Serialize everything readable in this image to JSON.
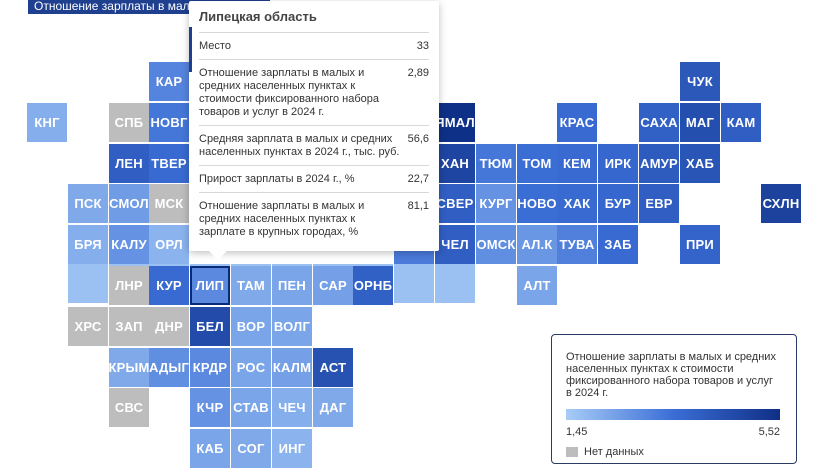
{
  "header": {
    "title": "Отношение зарплаты в малых и средних..."
  },
  "colors": {
    "low": "#a8ccf6",
    "mid": "#3b6ed6",
    "high": "#0f2f86",
    "na": "#bdbdbd"
  },
  "regions": [
    {
      "code": "КАР",
      "col": 4,
      "row": 1,
      "value": 3.0
    },
    {
      "code": "ЧУК",
      "col": 17,
      "row": 1,
      "value": 4.2
    },
    {
      "code": "КНГ",
      "col": 1,
      "row": 2,
      "value": 2.1
    },
    {
      "code": "СПБ",
      "col": 3,
      "row": 2,
      "value": null
    },
    {
      "code": "НОВГ",
      "col": 4,
      "row": 2,
      "value": 3.3
    },
    {
      "code": "ЯМАЛ",
      "col": 11,
      "row": 2,
      "value": 5.5
    },
    {
      "code": "КРАС",
      "col": 14,
      "row": 2,
      "value": 3.6
    },
    {
      "code": "САХА",
      "col": 16,
      "row": 2,
      "value": 3.9
    },
    {
      "code": "МАГ",
      "col": 17,
      "row": 2,
      "value": 4.5
    },
    {
      "code": "КАМ",
      "col": 18,
      "row": 2,
      "value": 4.0
    },
    {
      "code": "ЛЕН",
      "col": 3,
      "row": 3,
      "value": 4.0
    },
    {
      "code": "ТВЕР",
      "col": 4,
      "row": 3,
      "value": 3.6
    },
    {
      "code": "ХАН",
      "col": 11,
      "row": 3,
      "value": 4.8
    },
    {
      "code": "ТЮМ",
      "col": 12,
      "row": 3,
      "value": 3.3
    },
    {
      "code": "ТОМ",
      "col": 13,
      "row": 3,
      "value": 3.5
    },
    {
      "code": "КЕМ",
      "col": 14,
      "row": 3,
      "value": 3.6
    },
    {
      "code": "ИРК",
      "col": 15,
      "row": 3,
      "value": 3.7
    },
    {
      "code": "АМУР",
      "col": 16,
      "row": 3,
      "value": 4.1
    },
    {
      "code": "ХАБ",
      "col": 17,
      "row": 3,
      "value": 4.3
    },
    {
      "code": "ПСК",
      "col": 2,
      "row": 4,
      "value": 2.2
    },
    {
      "code": "СМОЛ",
      "col": 3,
      "row": 4,
      "value": 2.5
    },
    {
      "code": "МСК",
      "col": 4,
      "row": 4,
      "value": null
    },
    {
      "code": "СВЕР",
      "col": 11,
      "row": 4,
      "value": 4.0
    },
    {
      "code": "КУРГ",
      "col": 12,
      "row": 4,
      "value": 2.7
    },
    {
      "code": "НОВО",
      "col": 13,
      "row": 4,
      "value": 3.5
    },
    {
      "code": "ХАК",
      "col": 14,
      "row": 4,
      "value": 3.6
    },
    {
      "code": "БУР",
      "col": 15,
      "row": 4,
      "value": 3.7
    },
    {
      "code": "ЕВР",
      "col": 16,
      "row": 4,
      "value": 4.0
    },
    {
      "code": "СХЛН",
      "col": 19,
      "row": 4,
      "value": 4.9
    },
    {
      "code": "БРЯ",
      "col": 2,
      "row": 5,
      "value": 2.1
    },
    {
      "code": "КАЛУ",
      "col": 3,
      "row": 5,
      "value": 2.7
    },
    {
      "code": "ОРЛ",
      "col": 4,
      "row": 5,
      "value": 2.0
    },
    {
      "code": "",
      "col": 10,
      "row": 5,
      "value": 3.2
    },
    {
      "code": "ЧЕЛ",
      "col": 11,
      "row": 5,
      "value": 4.0
    },
    {
      "code": "ОМСК",
      "col": 12,
      "row": 5,
      "value": 2.8
    },
    {
      "code": "АЛ.К",
      "col": 13,
      "row": 5,
      "value": 2.6
    },
    {
      "code": "ТУВА",
      "col": 14,
      "row": 5,
      "value": 3.1
    },
    {
      "code": "ЗАБ",
      "col": 15,
      "row": 5,
      "value": 3.6
    },
    {
      "code": "ПРИ",
      "col": 17,
      "row": 5,
      "value": 3.8
    },
    {
      "code": "",
      "col": 2,
      "row": 5.95,
      "value": 1.7
    },
    {
      "code": "",
      "col": 3,
      "row": 5.95,
      "value": 1.7
    },
    {
      "code": "",
      "col": 4,
      "row": 5.95,
      "value": 1.7
    },
    {
      "code": "",
      "col": 5,
      "row": 5.95,
      "value": 1.7
    },
    {
      "code": "",
      "col": 6,
      "row": 5.95,
      "value": 1.7
    },
    {
      "code": "",
      "col": 7,
      "row": 5.95,
      "value": 1.7
    },
    {
      "code": "",
      "col": 8,
      "row": 5.95,
      "value": 1.7
    },
    {
      "code": "",
      "col": 9,
      "row": 5.95,
      "value": 1.7
    },
    {
      "code": "",
      "col": 10,
      "row": 5.95,
      "value": 1.7
    },
    {
      "code": "",
      "col": 11,
      "row": 5.95,
      "value": 1.7
    },
    {
      "code": "ЛНР",
      "col": 3,
      "row": 6,
      "value": null
    },
    {
      "code": "КУР",
      "col": 4,
      "row": 6,
      "value": 3.6
    },
    {
      "code": "ЛИП",
      "col": 5,
      "row": 6,
      "value": 2.89,
      "selected": true
    },
    {
      "code": "ТАМ",
      "col": 6,
      "row": 6,
      "value": 2.2
    },
    {
      "code": "ПЕН",
      "col": 7,
      "row": 6,
      "value": 2.3
    },
    {
      "code": "САР",
      "col": 8,
      "row": 6,
      "value": 2.4
    },
    {
      "code": "ОРНБ",
      "col": 9,
      "row": 6,
      "value": 3.9
    },
    {
      "code": "АЛТ",
      "col": 13,
      "row": 6,
      "value": 2.3
    },
    {
      "code": "ХРС",
      "col": 2,
      "row": 7,
      "value": null
    },
    {
      "code": "ЗАП",
      "col": 3,
      "row": 7,
      "value": null
    },
    {
      "code": "ДНР",
      "col": 4,
      "row": 7,
      "value": null
    },
    {
      "code": "БЕЛ",
      "col": 5,
      "row": 7,
      "value": 4.6
    },
    {
      "code": "ВОР",
      "col": 6,
      "row": 7,
      "value": 2.3
    },
    {
      "code": "ВОЛГ",
      "col": 7,
      "row": 7,
      "value": 2.3
    },
    {
      "code": "КРЫМ",
      "col": 3,
      "row": 8,
      "value": 2.2
    },
    {
      "code": "АДЫГ",
      "col": 4,
      "row": 8,
      "value": 2.8
    },
    {
      "code": "КРДР",
      "col": 5,
      "row": 8,
      "value": 2.9
    },
    {
      "code": "РОС",
      "col": 6,
      "row": 8,
      "value": 2.3
    },
    {
      "code": "КАЛМ",
      "col": 7,
      "row": 8,
      "value": 2.4
    },
    {
      "code": "АСТ",
      "col": 8,
      "row": 8,
      "value": 4.4
    },
    {
      "code": "СВС",
      "col": 3,
      "row": 9,
      "value": null
    },
    {
      "code": "КЧР",
      "col": 5,
      "row": 9,
      "value": 2.7
    },
    {
      "code": "СТАВ",
      "col": 6,
      "row": 9,
      "value": 2.3
    },
    {
      "code": "ЧЕЧ",
      "col": 7,
      "row": 9,
      "value": 2.1
    },
    {
      "code": "ДАГ",
      "col": 8,
      "row": 9,
      "value": 2.2
    },
    {
      "code": "КАБ",
      "col": 5,
      "row": 10,
      "value": 2.3
    },
    {
      "code": "СОГ",
      "col": 6,
      "row": 10,
      "value": 2.2
    },
    {
      "code": "ИНГ",
      "col": 7,
      "row": 10,
      "value": 2.0
    }
  ],
  "tooltip": {
    "title": "Липецкая область",
    "rows": [
      {
        "label": "Место",
        "value": "33"
      },
      {
        "label": "Отношение зарплаты в малых и средних населенных пунктах к стоимости фиксированного набора товаров и услуг в 2024 г.",
        "value": "2,89"
      },
      {
        "label": "Средняя зарплата в малых и средних населенных пунктах в 2024 г., тыс. руб.",
        "value": "56,6"
      },
      {
        "label": "Прирост зарплаты в 2024 г., %",
        "value": "22,7"
      },
      {
        "label": "Отношение зарплаты в малых и средних населенных пунктах к зарплате в крупных городах, %",
        "value": "81,1"
      }
    ]
  },
  "legend": {
    "title": "Отношение зарплаты в малых и средних населенных пунктах к стоимости фиксированного набора товаров и услуг в 2024 г.",
    "min": "1,45",
    "max": "5,52",
    "min_value": 1.45,
    "max_value": 5.52,
    "na_label": "Нет данных"
  }
}
